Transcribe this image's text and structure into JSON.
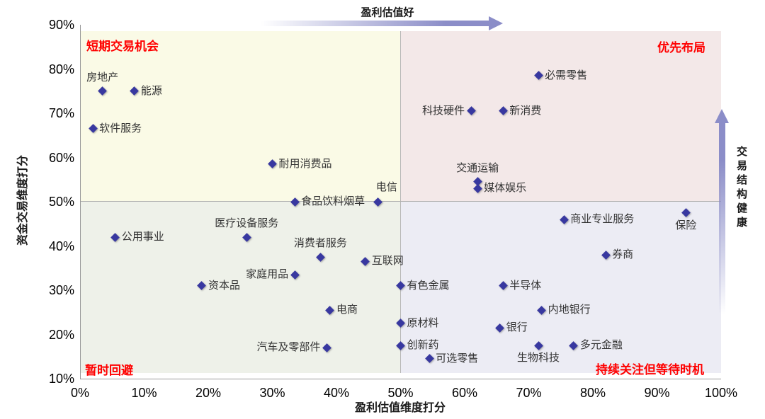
{
  "chart_data": {
    "type": "scatter",
    "title": "",
    "xlabel": "盈利估值维度打分",
    "ylabel": "资金交易维度打分",
    "xlim": [
      0,
      100
    ],
    "ylim": [
      10,
      90
    ],
    "x_unit": "%",
    "y_unit": "%",
    "grid": false,
    "x_tick_labels": [
      "0%",
      "10%",
      "20%",
      "30%",
      "40%",
      "50%",
      "60%",
      "70%",
      "80%",
      "90%",
      "100%"
    ],
    "y_tick_labels": [
      "90%",
      "80%",
      "70%",
      "60%",
      "50%",
      "40%",
      "30%",
      "20%",
      "10%"
    ],
    "quadrant_split": {
      "x": 50,
      "y": 50
    },
    "quadrant_labels": {
      "top_left": "短期交易机会",
      "top_right": "优先布局",
      "bottom_left": "暂时回避",
      "bottom_right": "持续关注但等待时机"
    },
    "top_arrow_label": "盈利估值好",
    "right_arrow_label": "交易结构健康",
    "points": [
      {
        "label": "房地产",
        "x": 3.5,
        "y": 75,
        "label_pos": "above"
      },
      {
        "label": "能源",
        "x": 8.5,
        "y": 75,
        "label_pos": "right"
      },
      {
        "label": "软件服务",
        "x": 2,
        "y": 66.5,
        "label_pos": "right"
      },
      {
        "label": "耐用消费品",
        "x": 30,
        "y": 58.5,
        "label_pos": "right"
      },
      {
        "label": "食品饮料烟草",
        "x": 33.5,
        "y": 50,
        "label_pos": "right"
      },
      {
        "label": "电信",
        "x": 46.5,
        "y": 50,
        "label_pos": "above-right"
      },
      {
        "label": "必需零售",
        "x": 71.5,
        "y": 78.5,
        "label_pos": "right"
      },
      {
        "label": "科技硬件",
        "x": 61,
        "y": 70.5,
        "label_pos": "left"
      },
      {
        "label": "新消费",
        "x": 66,
        "y": 70.5,
        "label_pos": "right"
      },
      {
        "label": "交通运输",
        "x": 62,
        "y": 54.5,
        "label_pos": "above"
      },
      {
        "label": "媒体娱乐",
        "x": 62,
        "y": 53,
        "label_pos": "right"
      },
      {
        "label": "公用事业",
        "x": 5.5,
        "y": 42,
        "label_pos": "right"
      },
      {
        "label": "医疗设备服务",
        "x": 26,
        "y": 42,
        "label_pos": "above"
      },
      {
        "label": "消费者服务",
        "x": 37.5,
        "y": 37.5,
        "label_pos": "above"
      },
      {
        "label": "互联网",
        "x": 44.5,
        "y": 36.5,
        "label_pos": "right"
      },
      {
        "label": "家庭用品",
        "x": 33.5,
        "y": 33.5,
        "label_pos": "left"
      },
      {
        "label": "资本品",
        "x": 19,
        "y": 31,
        "label_pos": "right"
      },
      {
        "label": "电商",
        "x": 39,
        "y": 25.5,
        "label_pos": "right"
      },
      {
        "label": "汽车及零部件",
        "x": 38.5,
        "y": 17,
        "label_pos": "left"
      },
      {
        "label": "商业专业服务",
        "x": 75.5,
        "y": 46,
        "label_pos": "right"
      },
      {
        "label": "保险",
        "x": 94.5,
        "y": 47.5,
        "label_pos": "below"
      },
      {
        "label": "券商",
        "x": 82,
        "y": 38,
        "label_pos": "right"
      },
      {
        "label": "有色金属",
        "x": 50,
        "y": 31,
        "label_pos": "right"
      },
      {
        "label": "半导体",
        "x": 66,
        "y": 31,
        "label_pos": "right"
      },
      {
        "label": "内地银行",
        "x": 72,
        "y": 25.5,
        "label_pos": "right"
      },
      {
        "label": "原材料",
        "x": 50,
        "y": 22.5,
        "label_pos": "right"
      },
      {
        "label": "银行",
        "x": 65.5,
        "y": 21.5,
        "label_pos": "right"
      },
      {
        "label": "创新药",
        "x": 50,
        "y": 17.5,
        "label_pos": "right"
      },
      {
        "label": "生物科技",
        "x": 71.5,
        "y": 17.5,
        "label_pos": "below"
      },
      {
        "label": "多元金融",
        "x": 77,
        "y": 17.5,
        "label_pos": "right"
      },
      {
        "label": "可选零售",
        "x": 54.5,
        "y": 14.5,
        "label_pos": "right"
      }
    ],
    "colors": {
      "marker": "#3838a0",
      "quadrant_top_left_bg": "#fafae6",
      "quadrant_top_right_bg": "#f3e8e8",
      "quadrant_bottom_left_bg": "#eef1e9",
      "quadrant_bottom_right_bg": "#ececf4",
      "quadrant_label": "#ff0000",
      "arrow": "#8b8dc8",
      "point_label_text": "#333333"
    }
  }
}
